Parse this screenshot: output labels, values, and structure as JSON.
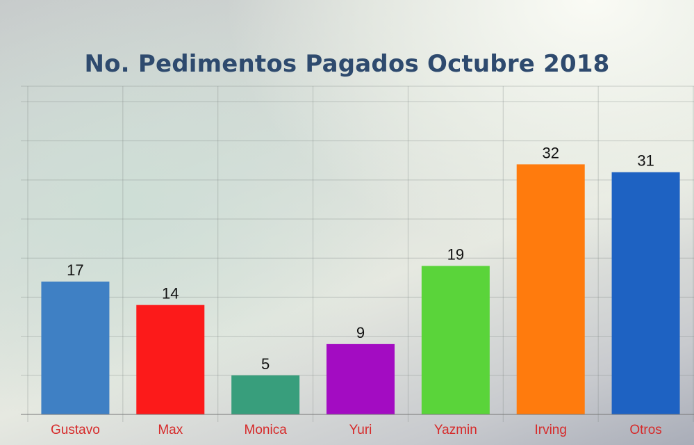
{
  "chart_data": {
    "type": "bar",
    "title": "No. Pedimentos Pagados Octubre 2018",
    "xlabel": "",
    "ylabel": "",
    "categories": [
      "Gustavo",
      "Max",
      "Monica",
      "Yuri",
      "Yazmin",
      "Irving",
      "Otros"
    ],
    "values": [
      17,
      14,
      5,
      9,
      19,
      32,
      31
    ],
    "colors": [
      "#3f80c4",
      "#fc1a1a",
      "#389e7c",
      "#a30cc2",
      "#5ad43a",
      "#ff7b0d",
      "#1e62c2"
    ],
    "label_color": "#d62a2a",
    "value_label_color": "#111111",
    "ylim": [
      0,
      42
    ],
    "y_grid_step": 5,
    "grid": true,
    "legend": "none"
  }
}
